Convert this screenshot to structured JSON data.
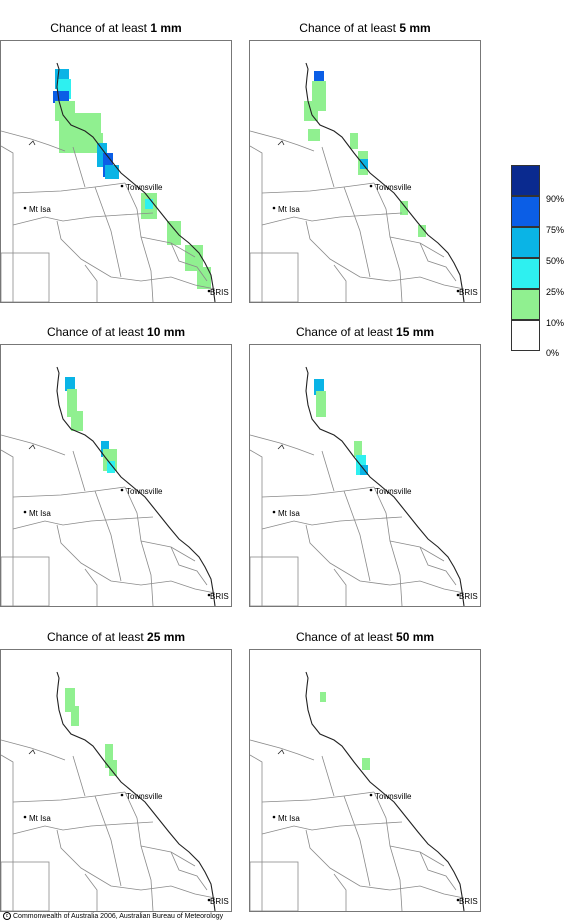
{
  "panels": [
    {
      "title_prefix": "Chance of at least",
      "amount": "1 mm",
      "level": 1
    },
    {
      "title_prefix": "Chance of at least",
      "amount": "5 mm",
      "level": 2
    },
    {
      "title_prefix": "Chance of at least",
      "amount": "10 mm",
      "level": 3
    },
    {
      "title_prefix": "Chance of at least",
      "amount": "15 mm",
      "level": 4
    },
    {
      "title_prefix": "Chance of at least",
      "amount": "25 mm",
      "level": 5
    },
    {
      "title_prefix": "Chance of at least",
      "amount": "50 mm",
      "level": 6
    }
  ],
  "places": {
    "townsville": "Townsville",
    "mt_isa": "Mt Isa",
    "brisbane": "BRIS"
  },
  "legend": {
    "classes": [
      {
        "label": "90%",
        "color": "#0a2a8f"
      },
      {
        "label": "75%",
        "color": "#0b5ee6"
      },
      {
        "label": "50%",
        "color": "#0ab4e6"
      },
      {
        "label": "25%",
        "color": "#2ef0f0"
      },
      {
        "label": "10%",
        "color": "#90f090"
      },
      {
        "label": "0%",
        "color": "#ffffff"
      }
    ]
  },
  "copyright": "Commonwealth of Australia 2006, Australian Bureau of Meteorology"
}
